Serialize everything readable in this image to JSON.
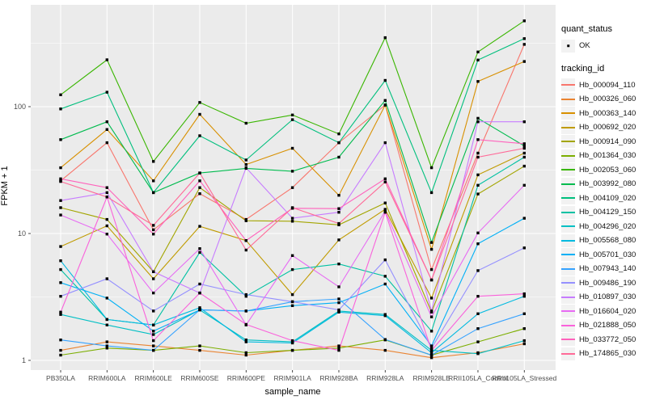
{
  "figure": {
    "background": "#FFFFFF",
    "panel_background": "#EBEBEB",
    "grid_color": "#FFFFFF",
    "axis_text_color": "#4D4D4D",
    "axis_title_color": "#000000",
    "point_color": "#000000",
    "legend_key_background": "#F2F2F2"
  },
  "axes": {
    "x_title": "sample_name",
    "y_title": "FPKM + 1",
    "y_scale": "log10",
    "y_tick_labels": [
      "1",
      "10",
      "100"
    ],
    "y_tick_values": [
      1,
      10,
      100
    ],
    "y_minor_values": [
      3.162,
      31.62,
      316.2
    ],
    "grid": "major-and-minor-horizontal, major-vertical"
  },
  "legend": {
    "quant_status_title": "quant_status",
    "quant_status_label": "OK",
    "tracking_id_title": "tracking_id"
  },
  "chart_data": {
    "type": "line",
    "title": "",
    "xlabel": "sample_name",
    "ylabel": "FPKM + 1",
    "y_axis": "log10, ticks at 1, 10, 100",
    "ylim_approx": [
      0.85,
      630
    ],
    "legend_position": "right",
    "marker": "small black square (quant_status = OK)",
    "categories": [
      "PB350LA",
      "RRIM600LA",
      "RRIM600LE",
      "RRIM600SE",
      "RRIM600PE",
      "RRIM901LA",
      "RRIM928BA",
      "RRIM928LA",
      "RRIM928LE",
      "RRII105LA_Control",
      "RRII105LA_Stressed"
    ],
    "series": [
      {
        "name": "Hb_000094_110",
        "color": "#F8766D",
        "values": [
          26,
          52,
          10.7,
          20.6,
          12.9,
          23,
          52,
          103,
          5.2,
          43,
          310
        ]
      },
      {
        "name": "Hb_000326_060",
        "color": "#EA8331",
        "values": [
          1.2,
          1.4,
          1.3,
          1.2,
          1.1,
          1.2,
          1.3,
          1.2,
          1.05,
          1.15,
          1.35
        ]
      },
      {
        "name": "Hb_000363_140",
        "color": "#D89000",
        "values": [
          33,
          66,
          26,
          87,
          35,
          47,
          20,
          103,
          7.5,
          158,
          227
        ]
      },
      {
        "name": "Hb_000692_020",
        "color": "#C09B00",
        "values": [
          7.9,
          11.5,
          4.4,
          11.4,
          8.8,
          3.3,
          8.9,
          15.5,
          3.1,
          29,
          43
        ]
      },
      {
        "name": "Hb_000914_090",
        "color": "#A3A500",
        "values": [
          16,
          12.9,
          5.0,
          23,
          12.6,
          12.5,
          11.7,
          17.4,
          2.4,
          20.5,
          34
        ]
      },
      {
        "name": "Hb_001364_030",
        "color": "#7CAE00",
        "values": [
          1.1,
          1.25,
          1.2,
          1.3,
          1.15,
          1.2,
          1.25,
          1.45,
          1.1,
          1.4,
          1.78
        ]
      },
      {
        "name": "Hb_002053_060",
        "color": "#39B600",
        "values": [
          124,
          234,
          37,
          108,
          74,
          86,
          61,
          350,
          33,
          270,
          475
        ]
      },
      {
        "name": "Hb_003992_080",
        "color": "#00BB4E",
        "values": [
          55,
          76,
          21,
          30,
          32.6,
          31,
          40,
          112,
          8.5,
          81,
          49
        ]
      },
      {
        "name": "Hb_004109_020",
        "color": "#00BF7D",
        "values": [
          96,
          130,
          21,
          59,
          38,
          79,
          52,
          161,
          21,
          233,
          344
        ]
      },
      {
        "name": "Hb_004129_150",
        "color": "#00C1A3",
        "values": [
          5.2,
          2.1,
          1.9,
          7.1,
          3.2,
          5.2,
          5.75,
          4.6,
          1.7,
          24,
          40
        ]
      },
      {
        "name": "Hb_004296_020",
        "color": "#00BFC4",
        "values": [
          2.3,
          1.9,
          1.6,
          2.5,
          1.45,
          1.4,
          2.45,
          2.3,
          1.2,
          1.13,
          1.43
        ]
      },
      {
        "name": "Hb_005568_080",
        "color": "#00BAE0",
        "values": [
          6.1,
          2.1,
          1.9,
          2.6,
          1.4,
          1.37,
          2.4,
          2.25,
          1.15,
          2.33,
          3.2
        ]
      },
      {
        "name": "Hb_005701_030",
        "color": "#00B0F6",
        "values": [
          4.1,
          3.1,
          1.7,
          2.5,
          2.45,
          2.7,
          2.85,
          4.0,
          1.3,
          8.3,
          13.2
        ]
      },
      {
        "name": "Hb_007943_140",
        "color": "#35A2FF",
        "values": [
          1.45,
          1.3,
          1.2,
          2.5,
          2.45,
          2.9,
          3.05,
          1.46,
          1.1,
          1.78,
          2.33
        ]
      },
      {
        "name": "Hb_009486_190",
        "color": "#9590FF",
        "values": [
          3.2,
          4.4,
          2.45,
          4.0,
          3.3,
          2.9,
          2.5,
          6.2,
          1.25,
          5.1,
          7.7
        ]
      },
      {
        "name": "Hb_010897_030",
        "color": "#C77CFF",
        "values": [
          18.2,
          21,
          5.0,
          3.4,
          33,
          13.2,
          14.7,
          52,
          2.45,
          76,
          76
        ]
      },
      {
        "name": "Hb_016604_020",
        "color": "#E76BF3",
        "values": [
          14,
          9.9,
          3.4,
          7.6,
          1.9,
          6.7,
          3.8,
          15,
          2.2,
          10.1,
          24
        ]
      },
      {
        "name": "Hb_021888_050",
        "color": "#FA62DB",
        "values": [
          2.4,
          19.4,
          1.43,
          3.4,
          1.92,
          1.43,
          1.2,
          14.7,
          1.2,
          3.2,
          3.35
        ]
      },
      {
        "name": "Hb_033772_050",
        "color": "#FF62BC",
        "values": [
          27,
          23,
          9.9,
          26,
          8.8,
          15.8,
          15.7,
          27,
          4.3,
          55,
          51
        ]
      },
      {
        "name": "Hb_174865_030",
        "color": "#FF6A98",
        "values": [
          25.7,
          19.4,
          11.6,
          30,
          7.4,
          16,
          12,
          25.5,
          4.3,
          40,
          47
        ]
      }
    ]
  }
}
